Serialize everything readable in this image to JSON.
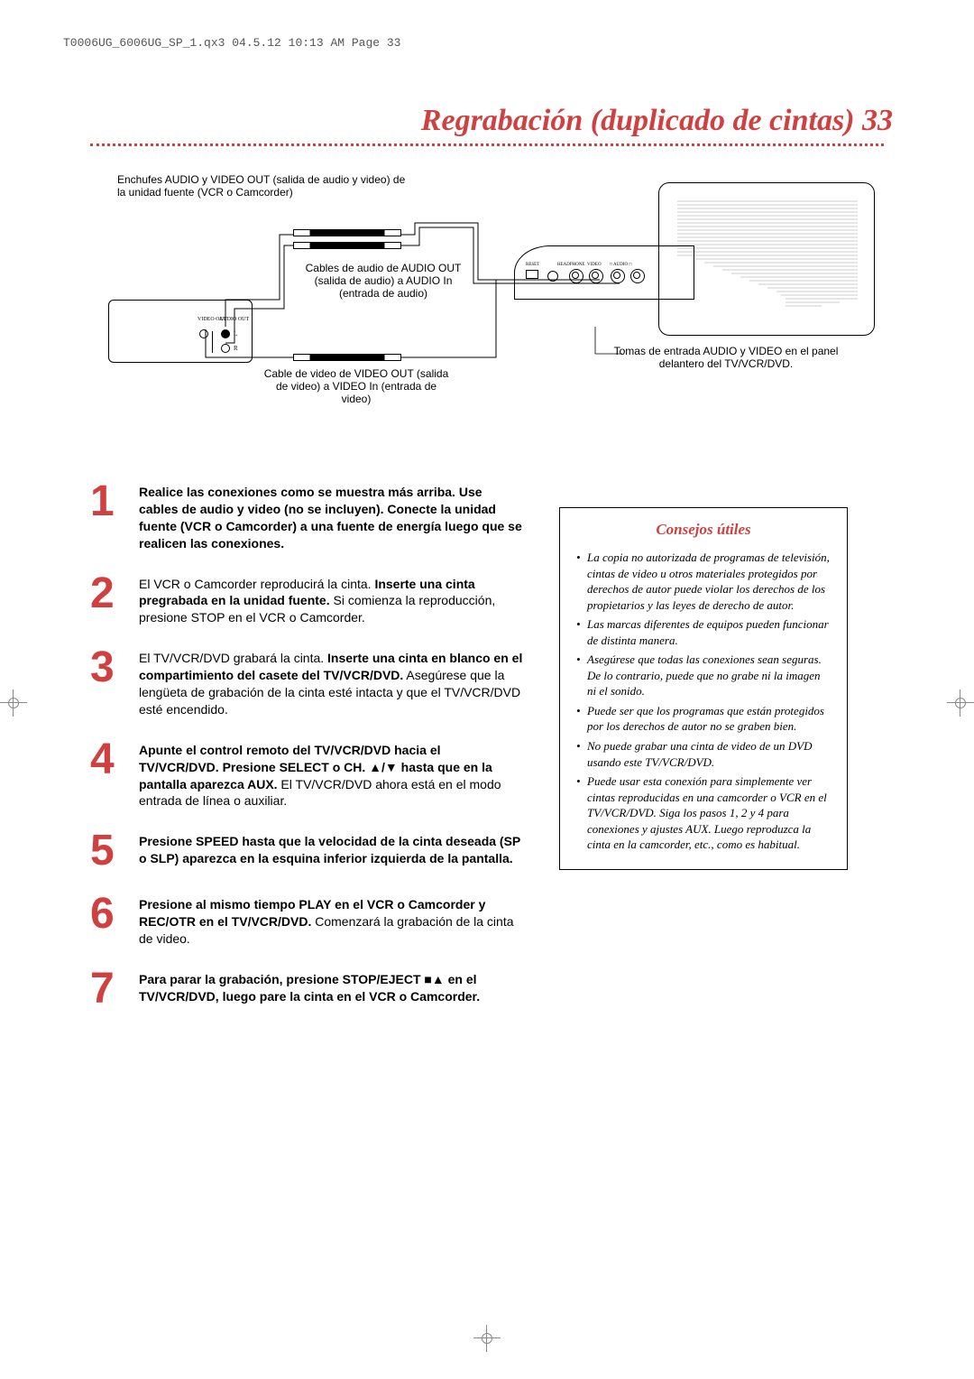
{
  "header_strip": "T0006UG_6006UG_SP_1.qx3  04.5.12  10:13 AM  Page 33",
  "page_title": "Regrabación (duplicado de cintas)  33",
  "diagram": {
    "source_label": "Enchufes AUDIO y VIDEO OUT (salida de audio y video) de la unidad fuente (VCR o Camcorder)",
    "vcr_out_video": "VIDEO OUT",
    "vcr_out_audio": "AUDIO OUT",
    "audio_cable_label": "Cables de audio de AUDIO OUT (salida de audio) a AUDIO In (entrada de audio)",
    "video_cable_label": "Cable de video de VIDEO OUT (salida de video) a VIDEO In (entrada de video)",
    "tv_panel_label": "Tomas de entrada AUDIO y VIDEO en el panel delantero del TV/VCR/DVD.",
    "tv_jack_reset": "RESET",
    "tv_jack_headphone": "HEADPHONE",
    "tv_jack_video": "VIDEO",
    "tv_jack_audio": "AUDIO"
  },
  "steps": [
    {
      "num": "1",
      "html": "<b>Realice las conexiones como se muestra más arriba. Use cables de audio y video (no se incluyen). Conecte la unidad fuente (VCR o Camcorder) a una fuente de energía luego que se realicen las conexiones.</b>"
    },
    {
      "num": "2",
      "html": "El VCR o Camcorder reproducirá la cinta. <b>Inserte una cinta pregrabada en la unidad fuente.</b> Si comienza la reproducción, presione STOP en el VCR o Camcorder."
    },
    {
      "num": "3",
      "html": "El TV/VCR/DVD grabará la cinta. <b>Inserte una cinta en blanco en el compartimiento del casete del TV/VCR/DVD.</b> Asegúrese que la lengüeta de grabación de la cinta esté intacta y que el TV/VCR/DVD esté encendido."
    },
    {
      "num": "4",
      "html": "<b>Apunte el control remoto del TV/VCR/DVD hacia el TV/VCR/DVD. Presione SELECT o CH. ▲/▼ hasta que en la pantalla aparezca AUX.</b> El TV/VCR/DVD ahora está en el modo entrada de línea o auxiliar."
    },
    {
      "num": "5",
      "html": "<b>Presione SPEED hasta que la velocidad de la cinta deseada (SP o SLP) aparezca en la esquina inferior izquierda de la pantalla.</b>"
    },
    {
      "num": "6",
      "html": "<b>Presione al mismo tiempo PLAY en el VCR o Camcorder y REC/OTR en el TV/VCR/DVD.</b> Comenzará la grabación de la cinta de video."
    },
    {
      "num": "7",
      "html": "<b>Para parar la grabación, presione STOP/EJECT ■▲ en el TV/VCR/DVD, luego pare la cinta en el VCR o Camcorder.</b>"
    }
  ],
  "tips": {
    "title": "Consejos útiles",
    "items": [
      "La copia no autorizada de programas de televisión, cintas de video u otros materiales protegidos por derechos de autor puede violar los derechos de los propietarios y las leyes de derecho de autor.",
      "Las marcas diferentes de equipos pueden funcionar de distinta manera.",
      "Asegúrese que todas las conexiones sean seguras. De lo contrario, puede que no grabe ni la imagen ni el sonido.",
      "Puede ser que los programas que están protegidos por los derechos de autor no se graben bien.",
      "No puede grabar una cinta de video de un DVD usando este TV/VCR/DVD.",
      "Puede usar esta conexión para simplemente ver cintas reproducidas en una camcorder o VCR en el TV/VCR/DVD. Siga los pasos 1, 2 y 4 para conexiones y ajustes AUX. Luego reproduzca la cinta en la camcorder, etc., como es habitual."
    ]
  },
  "colors": {
    "accent": "#d04040",
    "text": "#000000",
    "bg": "#ffffff"
  }
}
